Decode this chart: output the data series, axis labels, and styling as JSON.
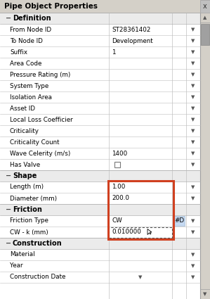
{
  "title": "Pipe Object Properties",
  "panel_bg": "#f0f0f0",
  "row_bg": "#ffffff",
  "section_bg": "#ececec",
  "title_bg": "#d4d0c8",
  "highlight_border": "#d04020",
  "blue_cell_bg": "#c5d9f1",
  "grid_line_color": "#c8c8c8",
  "text_color": "#000000",
  "sections": [
    {
      "name": "Definition",
      "rows": [
        {
          "label": "From Node ID",
          "value": "ST28361402",
          "extra": "",
          "checkbox": false,
          "highlight": false,
          "extra_blue": false,
          "dotted": false,
          "cursor": false,
          "val_dd": false
        },
        {
          "label": "To Node ID",
          "value": "Development",
          "extra": "",
          "checkbox": false,
          "highlight": false,
          "extra_blue": false,
          "dotted": false,
          "cursor": false,
          "val_dd": false
        },
        {
          "label": "Suffix",
          "value": "1",
          "extra": "",
          "checkbox": false,
          "highlight": false,
          "extra_blue": false,
          "dotted": false,
          "cursor": false,
          "val_dd": false
        },
        {
          "label": "Area Code",
          "value": "",
          "extra": "",
          "checkbox": false,
          "highlight": false,
          "extra_blue": false,
          "dotted": false,
          "cursor": false,
          "val_dd": false
        },
        {
          "label": "Pressure Rating (m)",
          "value": "",
          "extra": "",
          "checkbox": false,
          "highlight": false,
          "extra_blue": false,
          "dotted": false,
          "cursor": false,
          "val_dd": false
        },
        {
          "label": "System Type",
          "value": "",
          "extra": "",
          "checkbox": false,
          "highlight": false,
          "extra_blue": false,
          "dotted": false,
          "cursor": false,
          "val_dd": false
        },
        {
          "label": "Isolation Area",
          "value": "",
          "extra": "",
          "checkbox": false,
          "highlight": false,
          "extra_blue": false,
          "dotted": false,
          "cursor": false,
          "val_dd": false
        },
        {
          "label": "Asset ID",
          "value": "",
          "extra": "",
          "checkbox": false,
          "highlight": false,
          "extra_blue": false,
          "dotted": false,
          "cursor": false,
          "val_dd": false
        },
        {
          "label": "Local Loss Coefficier",
          "value": "",
          "extra": "",
          "checkbox": false,
          "highlight": false,
          "extra_blue": false,
          "dotted": false,
          "cursor": false,
          "val_dd": false
        },
        {
          "label": "Criticality",
          "value": "",
          "extra": "",
          "checkbox": false,
          "highlight": false,
          "extra_blue": false,
          "dotted": false,
          "cursor": false,
          "val_dd": false
        },
        {
          "label": "Criticality Count",
          "value": "",
          "extra": "",
          "checkbox": false,
          "highlight": false,
          "extra_blue": false,
          "dotted": false,
          "cursor": false,
          "val_dd": false
        },
        {
          "label": "Wave Celerity (m/s)",
          "value": "1400",
          "extra": "",
          "checkbox": false,
          "highlight": false,
          "extra_blue": false,
          "dotted": false,
          "cursor": false,
          "val_dd": false
        },
        {
          "label": "Has Valve",
          "value": "",
          "extra": "",
          "checkbox": true,
          "highlight": false,
          "extra_blue": false,
          "dotted": false,
          "cursor": false,
          "val_dd": false
        }
      ]
    },
    {
      "name": "Shape",
      "rows": [
        {
          "label": "Length (m)",
          "value": "1.00",
          "extra": "",
          "checkbox": false,
          "highlight": true,
          "extra_blue": false,
          "dotted": false,
          "cursor": false,
          "val_dd": false
        },
        {
          "label": "Diameter (mm)",
          "value": "200.0",
          "extra": "",
          "checkbox": false,
          "highlight": true,
          "extra_blue": false,
          "dotted": false,
          "cursor": false,
          "val_dd": false
        }
      ]
    },
    {
      "name": "Friction",
      "rows": [
        {
          "label": "Friction Type",
          "value": "CW",
          "extra": "#D",
          "checkbox": false,
          "highlight": true,
          "extra_blue": true,
          "dotted": false,
          "cursor": false,
          "val_dd": false
        },
        {
          "label": "CW - k (mm)",
          "value": "0.010000",
          "extra": "",
          "checkbox": false,
          "highlight": true,
          "extra_blue": false,
          "dotted": true,
          "cursor": true,
          "val_dd": false
        }
      ]
    },
    {
      "name": "Construction",
      "rows": [
        {
          "label": "Material",
          "value": "",
          "extra": "",
          "checkbox": false,
          "highlight": false,
          "extra_blue": false,
          "dotted": false,
          "cursor": false,
          "val_dd": false
        },
        {
          "label": "Year",
          "value": "",
          "extra": "",
          "checkbox": false,
          "highlight": false,
          "extra_blue": false,
          "dotted": false,
          "cursor": false,
          "val_dd": false
        },
        {
          "label": "Construction Date",
          "value": "",
          "extra": "",
          "checkbox": false,
          "highlight": false,
          "extra_blue": false,
          "dotted": false,
          "cursor": false,
          "val_dd": true
        }
      ]
    }
  ]
}
